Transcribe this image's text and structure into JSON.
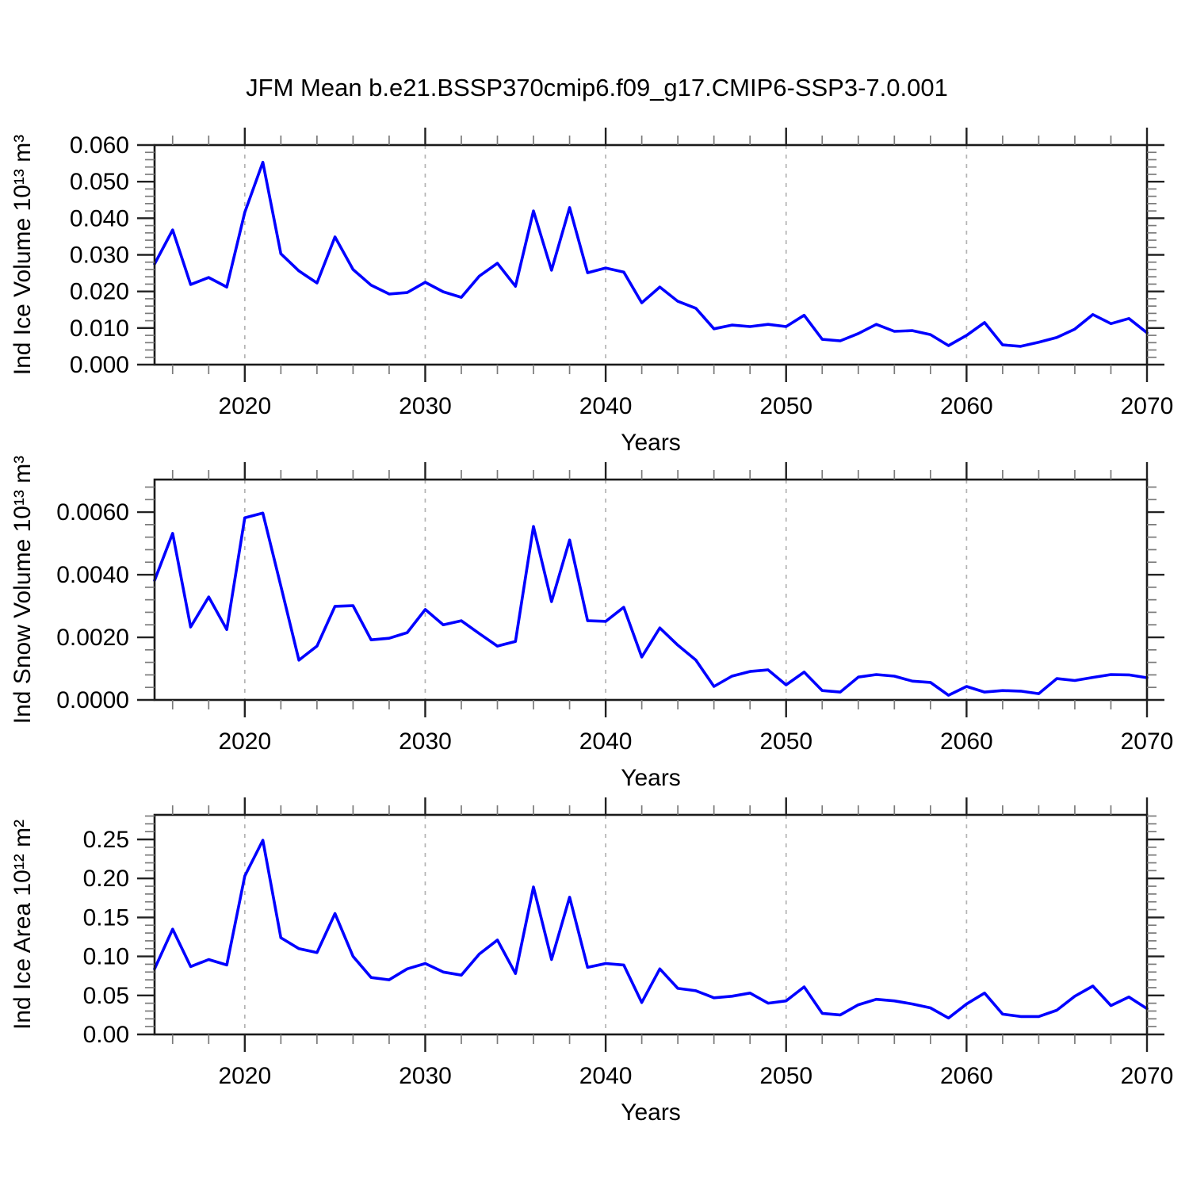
{
  "title": "JFM Mean b.e21.BSSP370cmip6.f09_g17.CMIP6-SSP3-7.0.001",
  "colors": {
    "line": "#0000ff",
    "grid": "#b3b3b3",
    "axis": "#1a1a1a",
    "major_tick": "#222222",
    "minor_tick": "#7a7a7a",
    "text": "#000000",
    "background": "#ffffff"
  },
  "x_axis": {
    "label": "Years",
    "min": 2015,
    "max": 2070,
    "major_ticks": [
      2020,
      2030,
      2040,
      2050,
      2060,
      2070
    ],
    "minor_step": 2,
    "gridline_years": [
      2020,
      2030,
      2040,
      2050,
      2060
    ]
  },
  "chart_data": [
    {
      "type": "line",
      "name": "ice-volume",
      "ylabel": "Ind Ice Volume 10¹³ m³",
      "xlabel": "Years",
      "xlim": [
        2015,
        2070
      ],
      "ylim": [
        0,
        0.06
      ],
      "ytick_values": [
        0,
        0.01,
        0.02,
        0.03,
        0.04,
        0.05,
        0.06
      ],
      "ytick_labels": [
        "0.000",
        "0.010",
        "0.020",
        "0.030",
        "0.040",
        "0.050",
        "0.060"
      ],
      "yminor_step": 0.002,
      "grid": true,
      "legend": "none",
      "x": [
        2015,
        2016,
        2017,
        2018,
        2019,
        2020,
        2021,
        2022,
        2023,
        2024,
        2025,
        2026,
        2027,
        2028,
        2029,
        2030,
        2031,
        2032,
        2033,
        2034,
        2035,
        2036,
        2037,
        2038,
        2039,
        2040,
        2041,
        2042,
        2043,
        2044,
        2045,
        2046,
        2047,
        2048,
        2049,
        2050,
        2051,
        2052,
        2053,
        2054,
        2055,
        2056,
        2057,
        2058,
        2059,
        2060,
        2061,
        2062,
        2063,
        2064,
        2065,
        2066,
        2067,
        2068,
        2069,
        2070
      ],
      "values": [
        0.0275,
        0.0368,
        0.0219,
        0.0238,
        0.0212,
        0.0416,
        0.0553,
        0.0303,
        0.0256,
        0.0223,
        0.0349,
        0.026,
        0.0217,
        0.0193,
        0.0197,
        0.0225,
        0.0199,
        0.0184,
        0.0242,
        0.0277,
        0.0214,
        0.042,
        0.0258,
        0.0429,
        0.0251,
        0.0264,
        0.0253,
        0.0169,
        0.0212,
        0.0173,
        0.0154,
        0.0098,
        0.0108,
        0.0104,
        0.011,
        0.0104,
        0.0135,
        0.0069,
        0.0065,
        0.0085,
        0.011,
        0.0091,
        0.0093,
        0.0082,
        0.0052,
        0.008,
        0.0115,
        0.0054,
        0.005,
        0.0061,
        0.0074,
        0.0097,
        0.0137,
        0.0112,
        0.0126,
        0.0087
      ]
    },
    {
      "type": "line",
      "name": "snow-volume",
      "ylabel": "Ind Snow Volume 10¹³ m³",
      "xlabel": "Years",
      "xlim": [
        2015,
        2070
      ],
      "ylim": [
        0,
        0.00704
      ],
      "ytick_values": [
        0,
        0.002,
        0.004,
        0.006
      ],
      "ytick_labels": [
        "0.0000",
        "0.0020",
        "0.0040",
        "0.0060"
      ],
      "yminor_step": 0.0004,
      "grid": true,
      "legend": "none",
      "x": [
        2015,
        2016,
        2017,
        2018,
        2019,
        2020,
        2021,
        2022,
        2023,
        2024,
        2025,
        2026,
        2027,
        2028,
        2029,
        2030,
        2031,
        2032,
        2033,
        2034,
        2035,
        2036,
        2037,
        2038,
        2039,
        2040,
        2041,
        2042,
        2043,
        2044,
        2045,
        2046,
        2047,
        2048,
        2049,
        2050,
        2051,
        2052,
        2053,
        2054,
        2055,
        2056,
        2057,
        2058,
        2059,
        2060,
        2061,
        2062,
        2063,
        2064,
        2065,
        2066,
        2067,
        2068,
        2069,
        2070
      ],
      "values": [
        0.00382,
        0.00532,
        0.00233,
        0.00329,
        0.00225,
        0.00582,
        0.00597,
        0.00364,
        0.00127,
        0.00172,
        0.00299,
        0.00301,
        0.00192,
        0.00197,
        0.00215,
        0.00289,
        0.0024,
        0.00253,
        0.00212,
        0.00172,
        0.00187,
        0.00554,
        0.00314,
        0.00511,
        0.00253,
        0.00251,
        0.00296,
        0.00137,
        0.0023,
        0.00175,
        0.00127,
        0.00043,
        0.00076,
        0.00091,
        0.00096,
        0.00048,
        0.00089,
        0.0003,
        0.00025,
        0.00073,
        0.00081,
        0.00076,
        0.0006,
        0.00056,
        0.00015,
        0.00043,
        0.00025,
        0.0003,
        0.00028,
        0.0002,
        0.00068,
        0.00062,
        0.00072,
        0.00081,
        0.0008,
        0.00071
      ]
    },
    {
      "type": "line",
      "name": "ice-area",
      "ylabel": "Ind Ice Area 10¹² m²",
      "xlabel": "Years",
      "xlim": [
        2015,
        2070
      ],
      "ylim": [
        0,
        0.2815
      ],
      "ytick_values": [
        0,
        0.05,
        0.1,
        0.15,
        0.2,
        0.25
      ],
      "ytick_labels": [
        "0.00",
        "0.05",
        "0.10",
        "0.15",
        "0.20",
        "0.25"
      ],
      "yminor_step": 0.01,
      "grid": true,
      "legend": "none",
      "x": [
        2015,
        2016,
        2017,
        2018,
        2019,
        2020,
        2021,
        2022,
        2023,
        2024,
        2025,
        2026,
        2027,
        2028,
        2029,
        2030,
        2031,
        2032,
        2033,
        2034,
        2035,
        2036,
        2037,
        2038,
        2039,
        2040,
        2041,
        2042,
        2043,
        2044,
        2045,
        2046,
        2047,
        2048,
        2049,
        2050,
        2051,
        2052,
        2053,
        2054,
        2055,
        2056,
        2057,
        2058,
        2059,
        2060,
        2061,
        2062,
        2063,
        2064,
        2065,
        2066,
        2067,
        2068,
        2069,
        2070
      ],
      "values": [
        0.084,
        0.135,
        0.087,
        0.096,
        0.089,
        0.203,
        0.249,
        0.124,
        0.11,
        0.105,
        0.155,
        0.1,
        0.073,
        0.07,
        0.084,
        0.091,
        0.08,
        0.076,
        0.103,
        0.121,
        0.078,
        0.189,
        0.096,
        0.176,
        0.086,
        0.091,
        0.089,
        0.041,
        0.084,
        0.059,
        0.056,
        0.047,
        0.049,
        0.053,
        0.04,
        0.043,
        0.061,
        0.027,
        0.025,
        0.038,
        0.045,
        0.043,
        0.039,
        0.034,
        0.021,
        0.039,
        0.053,
        0.026,
        0.023,
        0.023,
        0.031,
        0.049,
        0.062,
        0.037,
        0.048,
        0.033
      ]
    }
  ]
}
